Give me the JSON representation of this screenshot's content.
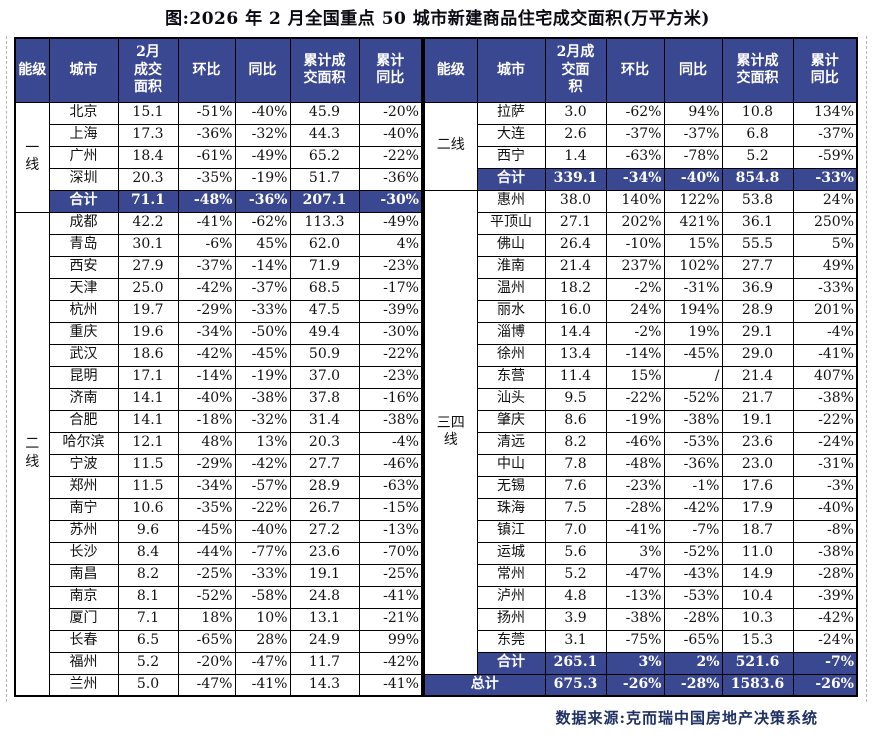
{
  "title": "图:2026 年 2 月全国重点 50 城市新建商品住宅成交面积(万平方米)",
  "source": "数据来源:克而瑞中国房地产决策系统",
  "colors": {
    "navy": "#3A4791",
    "border": "#000000",
    "source_text": "#1F3064"
  },
  "tables": [
    {
      "side": "left",
      "headers": [
        "能级",
        "城市",
        "2月\n成交\n面积",
        "环比",
        "同比",
        "累计成\n交面积",
        "累计\n同比"
      ],
      "tiers": [
        {
          "label": "一\n线",
          "rowspan": 5
        },
        {
          "label": "二\n线",
          "rowspan": 22
        }
      ],
      "rows": [
        {
          "type": "data",
          "cells": [
            "北京",
            "15.1",
            "-51%",
            "-40%",
            "45.9",
            "-20%"
          ]
        },
        {
          "type": "data",
          "cells": [
            "上海",
            "17.3",
            "-36%",
            "-32%",
            "44.3",
            "-40%"
          ]
        },
        {
          "type": "data",
          "cells": [
            "广州",
            "18.4",
            "-61%",
            "-49%",
            "65.2",
            "-22%"
          ]
        },
        {
          "type": "data",
          "cells": [
            "深圳",
            "20.3",
            "-35%",
            "-19%",
            "51.7",
            "-36%"
          ]
        },
        {
          "type": "subtotal",
          "cells": [
            "合计",
            "71.1",
            "-48%",
            "-36%",
            "207.1",
            "-30%"
          ]
        },
        {
          "type": "data",
          "cells": [
            "成都",
            "42.2",
            "-41%",
            "-62%",
            "113.3",
            "-49%"
          ]
        },
        {
          "type": "data",
          "cells": [
            "青岛",
            "30.1",
            "-6%",
            "45%",
            "62.0",
            "4%"
          ]
        },
        {
          "type": "data",
          "cells": [
            "西安",
            "27.9",
            "-37%",
            "-14%",
            "71.9",
            "-23%"
          ]
        },
        {
          "type": "data",
          "cells": [
            "天津",
            "25.0",
            "-42%",
            "-37%",
            "68.5",
            "-17%"
          ]
        },
        {
          "type": "data",
          "cells": [
            "杭州",
            "19.7",
            "-29%",
            "-33%",
            "47.5",
            "-39%"
          ]
        },
        {
          "type": "data",
          "cells": [
            "重庆",
            "19.6",
            "-34%",
            "-50%",
            "49.4",
            "-30%"
          ]
        },
        {
          "type": "data",
          "cells": [
            "武汉",
            "18.6",
            "-42%",
            "-45%",
            "50.9",
            "-22%"
          ]
        },
        {
          "type": "data",
          "cells": [
            "昆明",
            "17.1",
            "-14%",
            "-19%",
            "37.0",
            "-23%"
          ]
        },
        {
          "type": "data",
          "cells": [
            "济南",
            "14.1",
            "-40%",
            "-38%",
            "37.8",
            "-16%"
          ]
        },
        {
          "type": "data",
          "cells": [
            "合肥",
            "14.1",
            "-18%",
            "-32%",
            "31.4",
            "-38%"
          ]
        },
        {
          "type": "data",
          "cells": [
            "哈尔滨",
            "12.1",
            "48%",
            "13%",
            "20.3",
            "-4%"
          ]
        },
        {
          "type": "data",
          "cells": [
            "宁波",
            "11.5",
            "-29%",
            "-42%",
            "27.7",
            "-46%"
          ]
        },
        {
          "type": "data",
          "cells": [
            "郑州",
            "11.5",
            "-34%",
            "-57%",
            "28.9",
            "-63%"
          ]
        },
        {
          "type": "data",
          "cells": [
            "南宁",
            "10.6",
            "-35%",
            "-22%",
            "26.7",
            "-15%"
          ]
        },
        {
          "type": "data",
          "cells": [
            "苏州",
            "9.6",
            "-45%",
            "-40%",
            "27.2",
            "-13%"
          ]
        },
        {
          "type": "data",
          "cells": [
            "长沙",
            "8.4",
            "-44%",
            "-77%",
            "23.6",
            "-70%"
          ]
        },
        {
          "type": "data",
          "cells": [
            "南昌",
            "8.2",
            "-25%",
            "-33%",
            "19.1",
            "-25%"
          ]
        },
        {
          "type": "data",
          "cells": [
            "南京",
            "8.1",
            "-52%",
            "-58%",
            "24.8",
            "-41%"
          ]
        },
        {
          "type": "data",
          "cells": [
            "厦门",
            "7.1",
            "18%",
            "10%",
            "13.1",
            "-21%"
          ]
        },
        {
          "type": "data",
          "cells": [
            "长春",
            "6.5",
            "-65%",
            "28%",
            "24.9",
            "99%"
          ]
        },
        {
          "type": "data",
          "cells": [
            "福州",
            "5.2",
            "-20%",
            "-47%",
            "11.7",
            "-42%"
          ]
        },
        {
          "type": "data",
          "cells": [
            "兰州",
            "5.0",
            "-47%",
            "-41%",
            "14.3",
            "-41%"
          ]
        }
      ]
    },
    {
      "side": "right",
      "headers": [
        "能级",
        "城市",
        "2月成\n交面\n积",
        "环比",
        "同比",
        "累计成\n交面积",
        "累计\n同比"
      ],
      "tiers": [
        {
          "label": "二线",
          "rowspan": 4
        },
        {
          "label": "三四\n线",
          "rowspan": 22
        }
      ],
      "rows": [
        {
          "type": "data",
          "cells": [
            "拉萨",
            "3.0",
            "-62%",
            "94%",
            "10.8",
            "134%"
          ]
        },
        {
          "type": "data",
          "cells": [
            "大连",
            "2.6",
            "-37%",
            "-37%",
            "6.8",
            "-37%"
          ]
        },
        {
          "type": "data",
          "cells": [
            "西宁",
            "1.4",
            "-63%",
            "-78%",
            "5.2",
            "-59%"
          ]
        },
        {
          "type": "subtotal",
          "cells": [
            "合计",
            "339.1",
            "-34%",
            "-40%",
            "854.8",
            "-33%"
          ]
        },
        {
          "type": "data",
          "cells": [
            "惠州",
            "38.0",
            "140%",
            "122%",
            "53.8",
            "24%"
          ]
        },
        {
          "type": "data",
          "cells": [
            "平顶山",
            "27.1",
            "202%",
            "421%",
            "36.1",
            "250%"
          ]
        },
        {
          "type": "data",
          "cells": [
            "佛山",
            "26.4",
            "-10%",
            "15%",
            "55.5",
            "5%"
          ]
        },
        {
          "type": "data",
          "cells": [
            "淮南",
            "21.4",
            "237%",
            "102%",
            "27.7",
            "49%"
          ]
        },
        {
          "type": "data",
          "cells": [
            "温州",
            "18.2",
            "-2%",
            "-31%",
            "36.9",
            "-33%"
          ]
        },
        {
          "type": "data",
          "cells": [
            "丽水",
            "16.0",
            "24%",
            "194%",
            "28.9",
            "201%"
          ]
        },
        {
          "type": "data",
          "cells": [
            "淄博",
            "14.4",
            "-2%",
            "19%",
            "29.1",
            "-4%"
          ]
        },
        {
          "type": "data",
          "cells": [
            "徐州",
            "13.4",
            "-14%",
            "-45%",
            "29.0",
            "-41%"
          ]
        },
        {
          "type": "data",
          "cells": [
            "东营",
            "11.4",
            "15%",
            "/",
            "21.4",
            "407%"
          ]
        },
        {
          "type": "data",
          "cells": [
            "汕头",
            "9.5",
            "-22%",
            "-52%",
            "21.7",
            "-38%"
          ]
        },
        {
          "type": "data",
          "cells": [
            "肇庆",
            "8.6",
            "-19%",
            "-38%",
            "19.1",
            "-22%"
          ]
        },
        {
          "type": "data",
          "cells": [
            "清远",
            "8.2",
            "-46%",
            "-53%",
            "23.6",
            "-24%"
          ]
        },
        {
          "type": "data",
          "cells": [
            "中山",
            "7.8",
            "-48%",
            "-36%",
            "23.0",
            "-31%"
          ]
        },
        {
          "type": "data",
          "cells": [
            "无锡",
            "7.6",
            "-23%",
            "-1%",
            "17.6",
            "-3%"
          ]
        },
        {
          "type": "data",
          "cells": [
            "珠海",
            "7.5",
            "-28%",
            "-42%",
            "17.9",
            "-40%"
          ]
        },
        {
          "type": "data",
          "cells": [
            "镇江",
            "7.0",
            "-41%",
            "-7%",
            "18.7",
            "-8%"
          ]
        },
        {
          "type": "data",
          "cells": [
            "运城",
            "5.6",
            "3%",
            "-52%",
            "11.0",
            "-38%"
          ]
        },
        {
          "type": "data",
          "cells": [
            "常州",
            "5.2",
            "-47%",
            "-43%",
            "14.9",
            "-28%"
          ]
        },
        {
          "type": "data",
          "cells": [
            "泸州",
            "4.8",
            "-13%",
            "-53%",
            "10.4",
            "-39%"
          ]
        },
        {
          "type": "data",
          "cells": [
            "扬州",
            "3.9",
            "-38%",
            "-28%",
            "10.3",
            "-42%"
          ]
        },
        {
          "type": "data",
          "cells": [
            "东莞",
            "3.1",
            "-75%",
            "-65%",
            "15.3",
            "-24%"
          ]
        },
        {
          "type": "subtotal",
          "cells": [
            "合计",
            "265.1",
            "3%",
            "2%",
            "521.6",
            "-7%"
          ]
        },
        {
          "type": "grandtotal",
          "cells": [
            "总计",
            "675.3",
            "-26%",
            "-28%",
            "1583.6",
            "-26%"
          ]
        }
      ]
    }
  ]
}
